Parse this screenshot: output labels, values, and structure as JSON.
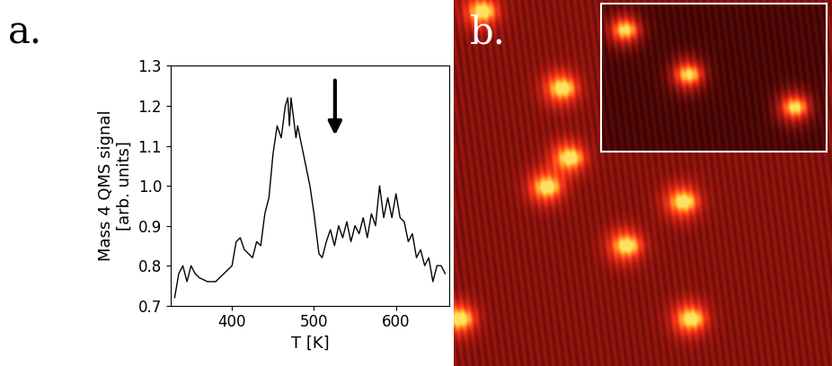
{
  "chart_data": {
    "type": "line",
    "x_label": "T [K]",
    "y_label": "Mass 4 QMS signal\n[arb. units]",
    "x": [
      330,
      335,
      340,
      345,
      350,
      355,
      360,
      370,
      380,
      390,
      400,
      405,
      410,
      415,
      420,
      425,
      430,
      435,
      440,
      445,
      450,
      455,
      460,
      465,
      468,
      470,
      472,
      475,
      478,
      480,
      485,
      490,
      495,
      500,
      503,
      506,
      510,
      515,
      520,
      525,
      530,
      535,
      540,
      545,
      550,
      555,
      560,
      565,
      570,
      575,
      580,
      585,
      590,
      595,
      600,
      605,
      610,
      615,
      620,
      625,
      630,
      635,
      640,
      645,
      650,
      655,
      660
    ],
    "values": [
      0.72,
      0.78,
      0.8,
      0.76,
      0.8,
      0.78,
      0.77,
      0.76,
      0.76,
      0.78,
      0.8,
      0.86,
      0.87,
      0.84,
      0.83,
      0.82,
      0.86,
      0.85,
      0.93,
      0.97,
      1.08,
      1.15,
      1.12,
      1.2,
      1.22,
      1.15,
      1.22,
      1.17,
      1.12,
      1.15,
      1.1,
      1.05,
      1.0,
      0.93,
      0.88,
      0.83,
      0.82,
      0.86,
      0.89,
      0.85,
      0.9,
      0.87,
      0.91,
      0.86,
      0.9,
      0.88,
      0.92,
      0.87,
      0.93,
      0.9,
      1.0,
      0.92,
      0.97,
      0.92,
      0.98,
      0.92,
      0.91,
      0.86,
      0.88,
      0.82,
      0.84,
      0.8,
      0.82,
      0.76,
      0.8,
      0.8,
      0.78
    ],
    "color": "#000000",
    "xlim": [
      325,
      665
    ],
    "xticks": [
      400,
      500,
      600
    ],
    "ylim": [
      0.7,
      1.3
    ],
    "yticks": [
      0.7,
      0.8,
      0.9,
      {
        "value": 1,
        "label": "1.0"
      },
      1.1,
      1.2,
      1.3
    ],
    "grid": false
  },
  "panel_labels": [
    "a.",
    "b."
  ]
}
